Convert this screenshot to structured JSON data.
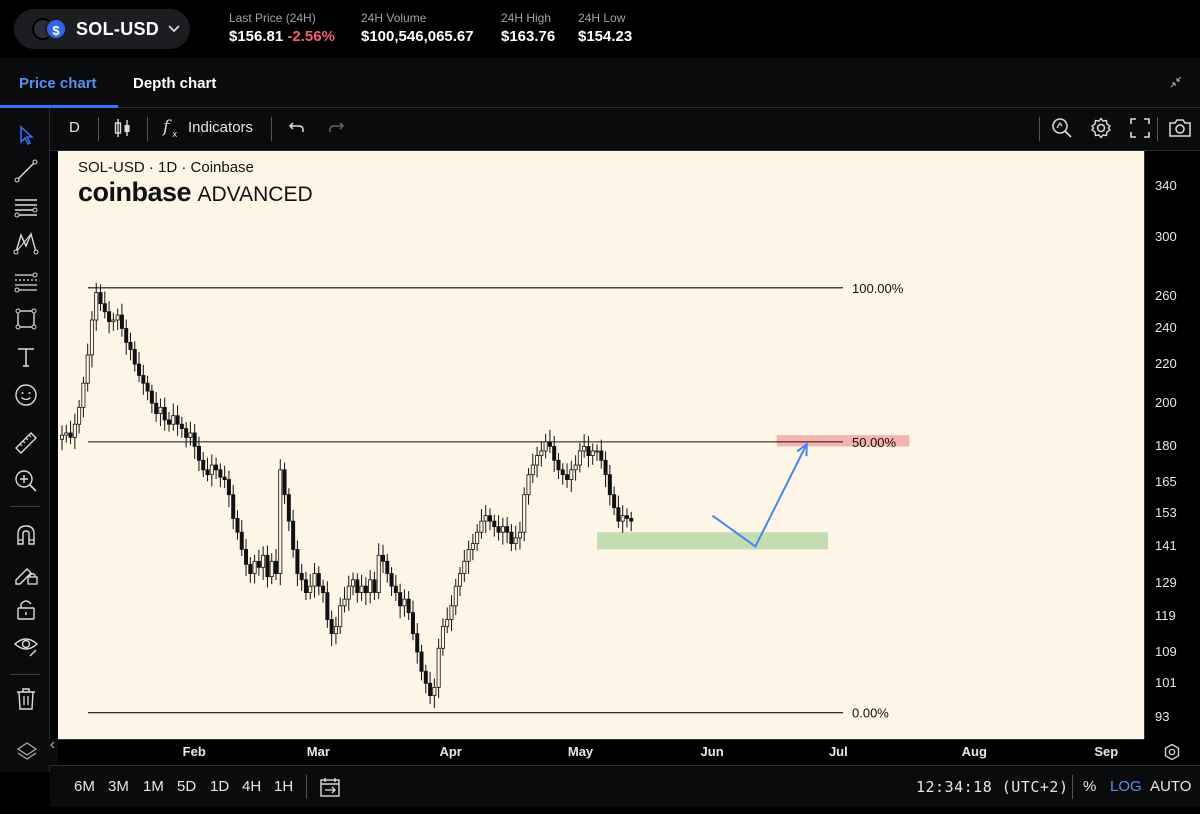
{
  "header": {
    "pair": "SOL-USD",
    "logo_glyph": "$",
    "stats": [
      {
        "label": "Last Price (24H)",
        "value": "$156.81",
        "change": "-2.56%"
      },
      {
        "label": "24H Volume",
        "value": "$100,546,065.67"
      },
      {
        "label": "24H High",
        "value": "$163.76"
      },
      {
        "label": "24H Low",
        "value": "$154.23"
      }
    ]
  },
  "tabs": {
    "price": "Price chart",
    "depth": "Depth chart"
  },
  "toolbar": {
    "interval": "D",
    "indicators": "Indicators"
  },
  "legend": {
    "line1": "SOL-USD · 1D · Coinbase",
    "brand": "coinbase",
    "brand_suffix": "ADVANCED"
  },
  "bottom": {
    "ranges": [
      "6M",
      "3M",
      "1M",
      "5D",
      "1D",
      "4H",
      "1H"
    ],
    "clock": "12:34:18 (UTC+2)",
    "pct": "%",
    "log": "LOG",
    "auto": "AUTO"
  },
  "colors": {
    "accent": "#3773f5",
    "negative": "#f0616d",
    "chart_bg": "#fdf6e6",
    "resistance_zone": "#f4a6a6",
    "support_zone": "#b8d8a6",
    "projection": "#4a86f0"
  },
  "chart_data": {
    "type": "candlestick",
    "scale": "log",
    "ylim": [
      91,
      355
    ],
    "y_ticks": [
      340,
      300,
      260,
      240,
      220,
      200,
      180,
      165,
      153,
      141,
      129,
      119,
      109,
      101,
      93
    ],
    "x_ticks": [
      "Feb",
      "Mar",
      "Apr",
      "May",
      "Jun",
      "Jul",
      "Aug",
      "Sep"
    ],
    "fib_levels": [
      {
        "label": "100.00%",
        "price": 265
      },
      {
        "label": "50.00%",
        "price": 182
      },
      {
        "label": "0.00%",
        "price": 94
      }
    ],
    "zones": [
      {
        "kind": "resistance",
        "from_date": "2024-06-16",
        "to_date": "2024-07-17",
        "low": 180,
        "high": 185
      },
      {
        "kind": "support",
        "from_date": "2024-05-05",
        "to_date": "2024-06-28",
        "low": 140,
        "high": 146
      }
    ],
    "projection": [
      {
        "date": "2024-06-01",
        "price": 152
      },
      {
        "date": "2024-06-11",
        "price": 141
      },
      {
        "date": "2024-06-23",
        "price": 181
      }
    ],
    "start_date": "2024-01-01",
    "closes": [
      185,
      186,
      184,
      190,
      198,
      210,
      225,
      245,
      262,
      255,
      250,
      244,
      245,
      248,
      240,
      232,
      228,
      220,
      214,
      210,
      206,
      200,
      195,
      198,
      192,
      190,
      194,
      190,
      188,
      184,
      186,
      180,
      174,
      170,
      168,
      172,
      170,
      167,
      166,
      160,
      151,
      146,
      140,
      135,
      132,
      136,
      134,
      138,
      131,
      136,
      132,
      170,
      160,
      150,
      140,
      132,
      130,
      126,
      128,
      132,
      128,
      126,
      118,
      114,
      116,
      122,
      124,
      128,
      130,
      126,
      128,
      126,
      130,
      126,
      138,
      136,
      132,
      128,
      126,
      122,
      124,
      120,
      114,
      109,
      104,
      101,
      98,
      100,
      110,
      116,
      118,
      122,
      128,
      132,
      136,
      140,
      142,
      146,
      150,
      152,
      150,
      148,
      146,
      148,
      146,
      142,
      144,
      146,
      160,
      168,
      172,
      176,
      178,
      182,
      180,
      174,
      170,
      168,
      166,
      170,
      172,
      178,
      180,
      176,
      178,
      178,
      174,
      168,
      160,
      155,
      150,
      152,
      151,
      150
    ]
  }
}
